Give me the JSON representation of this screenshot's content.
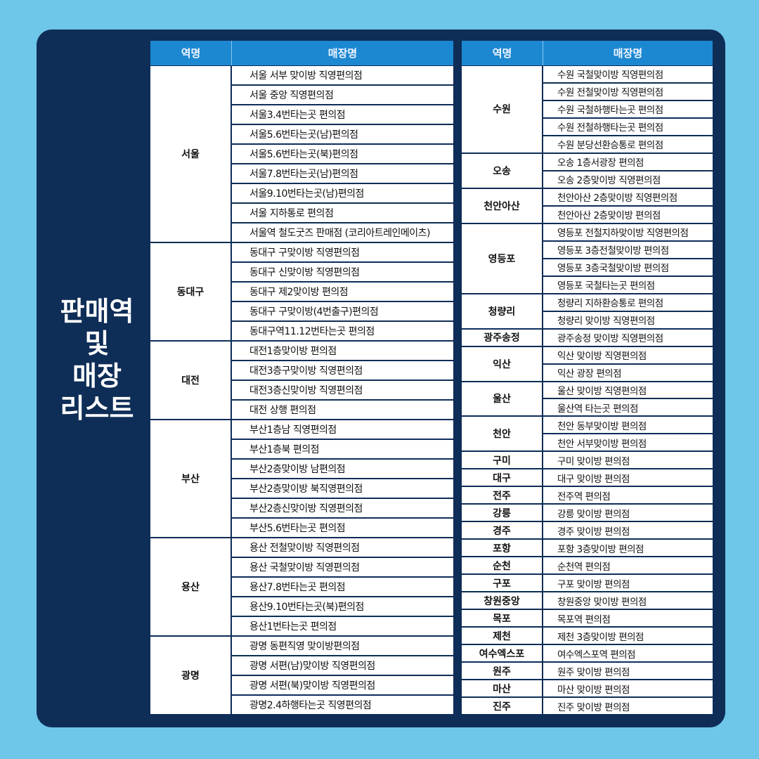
{
  "title": [
    "판매역",
    "및",
    "매장",
    "리스트"
  ],
  "tables": [
    {
      "headers": [
        "역명",
        "매장명"
      ],
      "groups": [
        {
          "station": "서울",
          "stores": [
            "서울 서부 맞이방 직영편의점",
            "서울 중앙 직영편의점",
            "서울3.4번타는곳 편의점",
            "서울5.6번타는곳(남)편의점",
            "서울5.6번타는곳(북)편의점",
            "서울7.8번타는곳(남)편의점",
            "서울9.10번타는곳(남)편의점",
            "서울 지하통로 편의점",
            "서울역 철도굿즈 판매점 (코리아트레인메이츠)"
          ]
        },
        {
          "station": "동대구",
          "stores": [
            "동대구 구맞이방 직영편의점",
            "동대구 신맞이방 직영편의점",
            "동대구 제2맞이방 편의점",
            "동대구 구맞이방(4번출구)편의점",
            "동대구역11.12번타는곳 편의점"
          ]
        },
        {
          "station": "대전",
          "stores": [
            "대전1층맞이방 편의점",
            "대전3층구맞이방 직영편의점",
            "대전3층신맞이방 직영편의점",
            "대전 상행 편의점"
          ]
        },
        {
          "station": "부산",
          "stores": [
            "부산1층남 직영편의점",
            "부산1층북 편의점",
            "부산2층맞이방 남편의점",
            "부산2층맞이방 북직영편의점",
            "부산2층신맞이방 직영편의점",
            "부산5.6번타는곳 편의점"
          ]
        },
        {
          "station": "용산",
          "stores": [
            "용산 전철맞이방 직영편의점",
            "용산 국철맞이방 직영편의점",
            "용산7.8번타는곳 편의점",
            "용산9.10번타는곳(북)편의점",
            "용산1번타는곳 편의점"
          ]
        },
        {
          "station": "광명",
          "stores": [
            "광명 동편직영 맞이방편의점",
            "광명 서편(남)맞이방 직영편의점",
            "광명 서편(북)맞이방 직영편의점",
            "광명2.4하행타는곳 직영편의점"
          ]
        }
      ]
    },
    {
      "headers": [
        "역명",
        "매장명"
      ],
      "groups": [
        {
          "station": "수원",
          "stores": [
            "수원 국철맞이방 직영편의점",
            "수원 전철맞이방 직영편의점",
            "수원 국철하행타는곳 편의점",
            "수원 전철하행타는곳 편의점",
            "수원 분당선환승통로 편의점"
          ]
        },
        {
          "station": "오송",
          "stores": [
            "오송 1층서광장 편의점",
            "오송 2층맞이방 직영편의점"
          ]
        },
        {
          "station": "천안아산",
          "stores": [
            "천안아산 2층맞이방 직영편의점",
            "천안아산 2층맞이방 편의점"
          ]
        },
        {
          "station": "영등포",
          "stores": [
            "영등포 전철지하맞이방 직영편의점",
            "영등포 3층전철맞이방 편의점",
            "영등포 3층국철맞이방 편의점",
            "영등포 국철타는곳 편의점"
          ]
        },
        {
          "station": "청량리",
          "stores": [
            "청량리 지하환승통로 편의점",
            "청량리 맞이방 직영편의점"
          ]
        },
        {
          "station": "광주송정",
          "stores": [
            "광주송정 맞이방 직영편의점"
          ]
        },
        {
          "station": "익산",
          "stores": [
            "익산 맞이방 직영편의점",
            "익산 광장 편의점"
          ]
        },
        {
          "station": "울산",
          "stores": [
            "울산 맞이방 직영편의점",
            "울산역 타는곳 편의점"
          ]
        },
        {
          "station": "천안",
          "stores": [
            "천안 동부맞이방 편의점",
            "천안 서부맞이방 편의점"
          ]
        },
        {
          "station": "구미",
          "stores": [
            "구미 맞이방 편의점"
          ]
        },
        {
          "station": "대구",
          "stores": [
            "대구 맞이방 편의점"
          ]
        },
        {
          "station": "전주",
          "stores": [
            "전주역 편의점"
          ]
        },
        {
          "station": "강릉",
          "stores": [
            "강릉 맞이방 편의점"
          ]
        },
        {
          "station": "경주",
          "stores": [
            "경주 맞이방 편의점"
          ]
        },
        {
          "station": "포항",
          "stores": [
            "포항 3층맞이방 편의점"
          ]
        },
        {
          "station": "순천",
          "stores": [
            "순천역 편의점"
          ]
        },
        {
          "station": "구포",
          "stores": [
            "구포 맞이방 편의점"
          ]
        },
        {
          "station": "창원중앙",
          "stores": [
            "창원중앙 맞이방 편의점"
          ]
        },
        {
          "station": "목포",
          "stores": [
            "목포역 편의점"
          ]
        },
        {
          "station": "제천",
          "stores": [
            "제천 3층맞이방 편의점"
          ]
        },
        {
          "station": "여수엑스포",
          "stores": [
            "여수엑스포역 편의점"
          ]
        },
        {
          "station": "원주",
          "stores": [
            "원주 맞이방 편의점"
          ]
        },
        {
          "station": "마산",
          "stores": [
            "마산 맞이방 편의점"
          ]
        },
        {
          "station": "진주",
          "stores": [
            "진주 맞이방 편의점"
          ]
        }
      ]
    }
  ]
}
